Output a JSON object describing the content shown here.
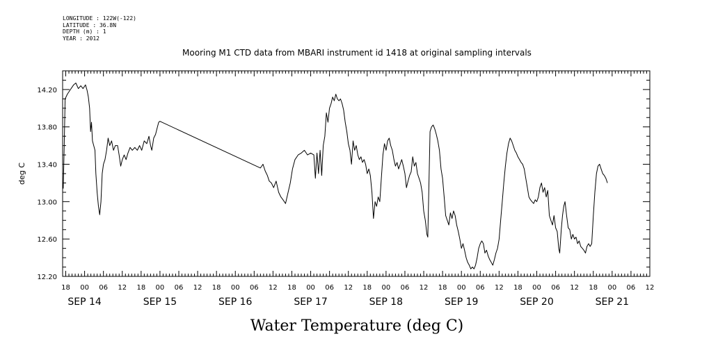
{
  "metadata": {
    "longitude": "LONGITUDE : 122W(-122)",
    "latitude": "LATITUDE : 36.8N",
    "depth": "DEPTH (m) : 1",
    "year": "YEAR : 2012"
  },
  "chart_data": {
    "type": "line",
    "title": "Mooring M1 CTD data from MBARI instrument id 1418 at original sampling intervals",
    "xlabel": "Water Temperature (deg C)",
    "ylabel": "deg C",
    "ylim": [
      12.2,
      14.4
    ],
    "yticks": [
      "12.20",
      "12.60",
      "13.00",
      "13.40",
      "13.80",
      "14.20"
    ],
    "xlim_hours": [
      -7,
      180
    ],
    "x_tick_labels": [
      "18",
      "00",
      "06",
      "12",
      "18",
      "00",
      "06",
      "12",
      "18",
      "00",
      "06",
      "12",
      "18",
      "00",
      "06",
      "12",
      "18",
      "00",
      "06",
      "12",
      "18",
      "00",
      "06",
      "12",
      "18",
      "00",
      "06",
      "12",
      "18",
      "00",
      "06",
      "12"
    ],
    "x_date_labels": [
      "SEP 14",
      "SEP 15",
      "SEP 16",
      "SEP 17",
      "SEP 18",
      "SEP 19",
      "SEP 20",
      "SEP 21"
    ],
    "series": [
      {
        "name": "",
        "points": [
          [
            -6.8,
            13.14
          ],
          [
            -6.5,
            13.6
          ],
          [
            -6.2,
            14.1
          ],
          [
            -5.5,
            14.15
          ],
          [
            -4.5,
            14.2
          ],
          [
            -3.5,
            14.25
          ],
          [
            -2.8,
            14.27
          ],
          [
            -2,
            14.21
          ],
          [
            -1.2,
            14.24
          ],
          [
            -0.5,
            14.21
          ],
          [
            0.3,
            14.25
          ],
          [
            0.8,
            14.19
          ],
          [
            1.2,
            14.12
          ],
          [
            1.6,
            14.0
          ],
          [
            1.9,
            13.75
          ],
          [
            2.2,
            13.85
          ],
          [
            2.5,
            13.65
          ],
          [
            2.9,
            13.6
          ],
          [
            3.3,
            13.55
          ],
          [
            3.6,
            13.3
          ],
          [
            4.0,
            13.1
          ],
          [
            4.4,
            12.95
          ],
          [
            4.8,
            12.86
          ],
          [
            5.2,
            13.0
          ],
          [
            5.6,
            13.3
          ],
          [
            6.0,
            13.4
          ],
          [
            6.5,
            13.45
          ],
          [
            7,
            13.55
          ],
          [
            7.5,
            13.68
          ],
          [
            8,
            13.6
          ],
          [
            8.6,
            13.65
          ],
          [
            9.2,
            13.55
          ],
          [
            9.8,
            13.6
          ],
          [
            10.5,
            13.6
          ],
          [
            11,
            13.5
          ],
          [
            11.5,
            13.38
          ],
          [
            12,
            13.45
          ],
          [
            12.6,
            13.5
          ],
          [
            13.2,
            13.45
          ],
          [
            13.8,
            13.52
          ],
          [
            14.5,
            13.58
          ],
          [
            15.2,
            13.55
          ],
          [
            16,
            13.58
          ],
          [
            16.8,
            13.55
          ],
          [
            17.5,
            13.6
          ],
          [
            18.2,
            13.55
          ],
          [
            19,
            13.65
          ],
          [
            19.8,
            13.62
          ],
          [
            20.5,
            13.7
          ],
          [
            21,
            13.6
          ],
          [
            21.4,
            13.55
          ],
          [
            22,
            13.68
          ],
          [
            22.6,
            13.72
          ],
          [
            23.2,
            13.8
          ],
          [
            23.6,
            13.85
          ],
          [
            24,
            13.86
          ],
          [
            56,
            13.36
          ],
          [
            56.8,
            13.4
          ],
          [
            57.5,
            13.33
          ],
          [
            58.2,
            13.28
          ],
          [
            58.8,
            13.22
          ],
          [
            59.5,
            13.2
          ],
          [
            60.2,
            13.15
          ],
          [
            61,
            13.22
          ],
          [
            61.8,
            13.1
          ],
          [
            62.5,
            13.05
          ],
          [
            63.2,
            13.02
          ],
          [
            64,
            12.98
          ],
          [
            64.8,
            13.1
          ],
          [
            65.5,
            13.2
          ],
          [
            66.2,
            13.35
          ],
          [
            67,
            13.45
          ],
          [
            68,
            13.5
          ],
          [
            69,
            13.52
          ],
          [
            70,
            13.55
          ],
          [
            71,
            13.5
          ],
          [
            72,
            13.52
          ],
          [
            73,
            13.5
          ],
          [
            73.5,
            13.25
          ],
          [
            74,
            13.52
          ],
          [
            74.5,
            13.3
          ],
          [
            75,
            13.55
          ],
          [
            75.5,
            13.28
          ],
          [
            76,
            13.6
          ],
          [
            76.5,
            13.7
          ],
          [
            77,
            13.95
          ],
          [
            77.5,
            13.85
          ],
          [
            78,
            14.0
          ],
          [
            78.5,
            14.05
          ],
          [
            79,
            14.12
          ],
          [
            79.5,
            14.08
          ],
          [
            80,
            14.15
          ],
          [
            80.5,
            14.1
          ],
          [
            81,
            14.08
          ],
          [
            81.5,
            14.1
          ],
          [
            82,
            14.05
          ],
          [
            82.5,
            13.98
          ],
          [
            83,
            13.85
          ],
          [
            83.5,
            13.75
          ],
          [
            84,
            13.62
          ],
          [
            84.5,
            13.55
          ],
          [
            85,
            13.4
          ],
          [
            85.5,
            13.65
          ],
          [
            86,
            13.55
          ],
          [
            86.5,
            13.6
          ],
          [
            87,
            13.5
          ],
          [
            87.5,
            13.45
          ],
          [
            88,
            13.48
          ],
          [
            88.5,
            13.42
          ],
          [
            89,
            13.45
          ],
          [
            89.5,
            13.4
          ],
          [
            90,
            13.3
          ],
          [
            90.5,
            13.35
          ],
          [
            91,
            13.28
          ],
          [
            91.5,
            13.1
          ],
          [
            92,
            12.82
          ],
          [
            92.5,
            13.0
          ],
          [
            93,
            12.95
          ],
          [
            93.5,
            13.05
          ],
          [
            94,
            13.0
          ],
          [
            94.5,
            13.25
          ],
          [
            95,
            13.5
          ],
          [
            95.5,
            13.62
          ],
          [
            96,
            13.55
          ],
          [
            96.5,
            13.65
          ],
          [
            97,
            13.68
          ],
          [
            97.5,
            13.6
          ],
          [
            98,
            13.55
          ],
          [
            98.5,
            13.45
          ],
          [
            99,
            13.38
          ],
          [
            99.5,
            13.42
          ],
          [
            100,
            13.35
          ],
          [
            100.5,
            13.4
          ],
          [
            101,
            13.45
          ],
          [
            101.5,
            13.38
          ],
          [
            102,
            13.3
          ],
          [
            102.5,
            13.15
          ],
          [
            103,
            13.22
          ],
          [
            103.5,
            13.28
          ],
          [
            104,
            13.32
          ],
          [
            104.5,
            13.48
          ],
          [
            105,
            13.38
          ],
          [
            105.5,
            13.42
          ],
          [
            106,
            13.3
          ],
          [
            106.5,
            13.25
          ],
          [
            107,
            13.2
          ],
          [
            107.5,
            13.1
          ],
          [
            108,
            12.9
          ],
          [
            108.5,
            12.8
          ],
          [
            109,
            12.65
          ],
          [
            109.3,
            12.62
          ],
          [
            109.7,
            13.25
          ],
          [
            110,
            13.75
          ],
          [
            110.5,
            13.8
          ],
          [
            111,
            13.82
          ],
          [
            111.5,
            13.78
          ],
          [
            112,
            13.72
          ],
          [
            112.5,
            13.65
          ],
          [
            113,
            13.55
          ],
          [
            113.5,
            13.35
          ],
          [
            114,
            13.25
          ],
          [
            114.5,
            13.05
          ],
          [
            115,
            12.85
          ],
          [
            115.5,
            12.8
          ],
          [
            116,
            12.75
          ],
          [
            116.5,
            12.88
          ],
          [
            117,
            12.82
          ],
          [
            117.5,
            12.9
          ],
          [
            118,
            12.85
          ],
          [
            118.5,
            12.75
          ],
          [
            119,
            12.68
          ],
          [
            119.5,
            12.6
          ],
          [
            120,
            12.5
          ],
          [
            120.5,
            12.55
          ],
          [
            121,
            12.48
          ],
          [
            121.5,
            12.4
          ],
          [
            122,
            12.35
          ],
          [
            122.5,
            12.32
          ],
          [
            123,
            12.28
          ],
          [
            123.5,
            12.3
          ],
          [
            124,
            12.28
          ],
          [
            124.5,
            12.32
          ],
          [
            125,
            12.4
          ],
          [
            125.5,
            12.5
          ],
          [
            126,
            12.55
          ],
          [
            126.5,
            12.58
          ],
          [
            127,
            12.55
          ],
          [
            127.5,
            12.45
          ],
          [
            128,
            12.48
          ],
          [
            128.5,
            12.42
          ],
          [
            129,
            12.38
          ],
          [
            129.5,
            12.35
          ],
          [
            130,
            12.32
          ],
          [
            130.5,
            12.38
          ],
          [
            131,
            12.45
          ],
          [
            131.5,
            12.5
          ],
          [
            132,
            12.6
          ],
          [
            132.5,
            12.8
          ],
          [
            133,
            13.0
          ],
          [
            133.5,
            13.2
          ],
          [
            134,
            13.38
          ],
          [
            134.5,
            13.52
          ],
          [
            135,
            13.62
          ],
          [
            135.5,
            13.68
          ],
          [
            136,
            13.65
          ],
          [
            136.5,
            13.6
          ],
          [
            137,
            13.55
          ],
          [
            137.5,
            13.52
          ],
          [
            138,
            13.48
          ],
          [
            138.5,
            13.45
          ],
          [
            139,
            13.42
          ],
          [
            139.5,
            13.4
          ],
          [
            140,
            13.35
          ],
          [
            140.5,
            13.25
          ],
          [
            141,
            13.15
          ],
          [
            141.5,
            13.05
          ],
          [
            142,
            13.02
          ],
          [
            142.5,
            13.0
          ],
          [
            143,
            12.98
          ],
          [
            143.5,
            13.02
          ],
          [
            144,
            13.0
          ],
          [
            144.5,
            13.05
          ],
          [
            145,
            13.15
          ],
          [
            145.5,
            13.2
          ],
          [
            146,
            13.1
          ],
          [
            146.5,
            13.15
          ],
          [
            147,
            13.05
          ],
          [
            147.5,
            13.12
          ],
          [
            148,
            12.85
          ],
          [
            148.5,
            12.8
          ],
          [
            149,
            12.75
          ],
          [
            149.5,
            12.85
          ],
          [
            150,
            12.72
          ],
          [
            150.5,
            12.68
          ],
          [
            151,
            12.5
          ],
          [
            151.3,
            12.45
          ],
          [
            151.8,
            12.7
          ],
          [
            152.2,
            12.85
          ],
          [
            152.6,
            12.95
          ],
          [
            153,
            13.0
          ],
          [
            153.5,
            12.85
          ],
          [
            154,
            12.72
          ],
          [
            154.5,
            12.7
          ],
          [
            155,
            12.6
          ],
          [
            155.5,
            12.65
          ],
          [
            156,
            12.6
          ],
          [
            156.5,
            12.62
          ],
          [
            157,
            12.55
          ],
          [
            157.5,
            12.58
          ],
          [
            158,
            12.52
          ],
          [
            158.5,
            12.5
          ],
          [
            159,
            12.48
          ],
          [
            159.5,
            12.45
          ],
          [
            160,
            12.52
          ],
          [
            160.5,
            12.55
          ],
          [
            161,
            12.52
          ],
          [
            161.5,
            12.55
          ],
          [
            162,
            12.85
          ],
          [
            162.5,
            13.1
          ],
          [
            163,
            13.3
          ],
          [
            163.5,
            13.38
          ],
          [
            164,
            13.4
          ],
          [
            164.5,
            13.35
          ],
          [
            165,
            13.3
          ],
          [
            165.5,
            13.28
          ],
          [
            166,
            13.25
          ],
          [
            166.5,
            13.2
          ]
        ]
      }
    ]
  }
}
